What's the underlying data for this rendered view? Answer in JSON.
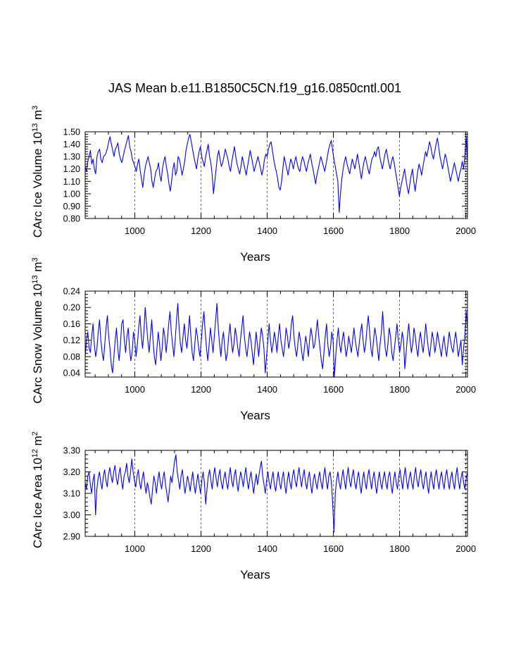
{
  "title": "JAS Mean b.e11.B1850C5CN.f19_g16.0850cntl.001",
  "line_color": "#0000ff",
  "chart_data": [
    {
      "type": "line",
      "title": "JAS Mean b.e11.B1850C5CN.f19_g16.0850cntl.001",
      "xlabel": "Years",
      "ylabel_main": "CArc Ice Volume 10",
      "ylabel_exp": "13",
      "ylabel_unit": " m",
      "ylabel_unit_exp": "3",
      "xlim": [
        850,
        2005
      ],
      "ylim": [
        0.8,
        1.5
      ],
      "yticks": [
        0.8,
        0.9,
        1.0,
        1.1,
        1.2,
        1.3,
        1.4,
        1.5
      ],
      "ytick_labels": [
        "0.80",
        "0.90",
        "1.00",
        "1.10",
        "1.20",
        "1.30",
        "1.40",
        "1.50"
      ],
      "xticks": [
        1000,
        1200,
        1400,
        1600,
        1800,
        2000
      ],
      "xtick_labels": [
        "1000",
        "1200",
        "1400",
        "1600",
        "1800",
        "2000"
      ],
      "gridlines_x": [
        1000,
        1200,
        1400,
        1600,
        1800,
        2000
      ],
      "series": [
        {
          "name": "CArc Ice Volume",
          "x_start": 850,
          "values": [
            1.22,
            1.18,
            1.26,
            1.3,
            1.35,
            1.24,
            1.28,
            1.2,
            1.16,
            1.3,
            1.34,
            1.36,
            1.28,
            1.25,
            1.3,
            1.31,
            1.33,
            1.37,
            1.42,
            1.46,
            1.4,
            1.35,
            1.3,
            1.36,
            1.38,
            1.41,
            1.32,
            1.28,
            1.25,
            1.3,
            1.35,
            1.39,
            1.43,
            1.47,
            1.38,
            1.34,
            1.28,
            1.25,
            1.22,
            1.18,
            1.24,
            1.28,
            1.19,
            1.12,
            1.05,
            1.15,
            1.22,
            1.26,
            1.3,
            1.25,
            1.2,
            1.1,
            1.05,
            1.12,
            1.18,
            1.2,
            1.25,
            1.15,
            1.1,
            1.2,
            1.26,
            1.3,
            1.22,
            1.16,
            1.08,
            1.02,
            1.1,
            1.2,
            1.25,
            1.15,
            1.18,
            1.3,
            1.28,
            1.22,
            1.15,
            1.2,
            1.26,
            1.35,
            1.4,
            1.45,
            1.48,
            1.42,
            1.36,
            1.3,
            1.25,
            1.2,
            1.28,
            1.34,
            1.38,
            1.3,
            1.26,
            1.22,
            1.3,
            1.35,
            1.4,
            1.3,
            1.25,
            1.15,
            1.0,
            1.1,
            1.2,
            1.3,
            1.35,
            1.28,
            1.22,
            1.25,
            1.3,
            1.36,
            1.32,
            1.28,
            1.22,
            1.18,
            1.26,
            1.32,
            1.38,
            1.3,
            1.24,
            1.2,
            1.16,
            1.22,
            1.3,
            1.25,
            1.2,
            1.15,
            1.22,
            1.28,
            1.35,
            1.3,
            1.24,
            1.18,
            1.22,
            1.26,
            1.3,
            1.25,
            1.2,
            1.15,
            1.2,
            1.28,
            1.32,
            1.3,
            1.36,
            1.4,
            1.42,
            1.35,
            1.28,
            1.22,
            1.18,
            1.12,
            1.05,
            1.03,
            1.1,
            1.2,
            1.3,
            1.25,
            1.2,
            1.15,
            1.22,
            1.28,
            1.25,
            1.2,
            1.26,
            1.3,
            1.24,
            1.2,
            1.18,
            1.25,
            1.3,
            1.27,
            1.22,
            1.18,
            1.24,
            1.28,
            1.32,
            1.25,
            1.2,
            1.14,
            1.08,
            1.15,
            1.2,
            1.25,
            1.3,
            1.26,
            1.22,
            1.18,
            1.24,
            1.3,
            1.36,
            1.4,
            1.43,
            1.35,
            1.28,
            1.22,
            1.16,
            1.1,
            0.85,
            1.0,
            1.12,
            1.2,
            1.26,
            1.3,
            1.24,
            1.2,
            1.16,
            1.22,
            1.28,
            1.24,
            1.2,
            1.26,
            1.32,
            1.25,
            1.18,
            1.12,
            1.2,
            1.26,
            1.3,
            1.25,
            1.2,
            1.16,
            1.22,
            1.28,
            1.3,
            1.34,
            1.3,
            1.36,
            1.38,
            1.3,
            1.25,
            1.2,
            1.26,
            1.32,
            1.36,
            1.3,
            1.24,
            1.2,
            1.26,
            1.3,
            1.25,
            1.18,
            1.12,
            1.05,
            0.98,
            1.05,
            1.1,
            1.15,
            1.2,
            1.12,
            1.05,
            1.0,
            1.08,
            1.15,
            1.2,
            1.1,
            1.02,
            1.1,
            1.18,
            1.24,
            1.2,
            1.15,
            1.22,
            1.28,
            1.34,
            1.3,
            1.36,
            1.42,
            1.38,
            1.32,
            1.28,
            1.34,
            1.4,
            1.45,
            1.38,
            1.3,
            1.25,
            1.2,
            1.26,
            1.32,
            1.28,
            1.22,
            1.16,
            1.1,
            1.15,
            1.2,
            1.25,
            1.2,
            1.15,
            1.1,
            1.16,
            1.2,
            1.26,
            1.2,
            1.3,
            1.46,
            1.25
          ]
        }
      ]
    },
    {
      "type": "line",
      "xlabel": "Years",
      "ylabel_main": "CArc Snow Volume 10",
      "ylabel_exp": "13",
      "ylabel_unit": " m",
      "ylabel_unit_exp": "3",
      "xlim": [
        850,
        2005
      ],
      "ylim": [
        0.03,
        0.24
      ],
      "yticks": [
        0.04,
        0.08,
        0.12,
        0.16,
        0.2,
        0.24
      ],
      "ytick_labels": [
        "0.04",
        "0.08",
        "0.12",
        "0.16",
        "0.20",
        "0.24"
      ],
      "xticks": [
        1000,
        1200,
        1400,
        1600,
        1800,
        2000
      ],
      "xtick_labels": [
        "1000",
        "1200",
        "1400",
        "1600",
        "1800",
        "2000"
      ],
      "gridlines_x": [
        1000,
        1200,
        1400,
        1600,
        1800,
        2000
      ],
      "series": [
        {
          "name": "CArc Snow Volume",
          "x_start": 850,
          "values": [
            0.08,
            0.12,
            0.14,
            0.1,
            0.09,
            0.13,
            0.16,
            0.11,
            0.08,
            0.1,
            0.14,
            0.17,
            0.12,
            0.09,
            0.07,
            0.11,
            0.15,
            0.18,
            0.13,
            0.1,
            0.06,
            0.04,
            0.08,
            0.12,
            0.15,
            0.1,
            0.07,
            0.11,
            0.16,
            0.17,
            0.12,
            0.09,
            0.13,
            0.15,
            0.1,
            0.07,
            0.09,
            0.14,
            0.12,
            0.08,
            0.11,
            0.15,
            0.18,
            0.13,
            0.1,
            0.14,
            0.2,
            0.16,
            0.12,
            0.09,
            0.13,
            0.17,
            0.12,
            0.08,
            0.06,
            0.1,
            0.14,
            0.11,
            0.07,
            0.1,
            0.15,
            0.13,
            0.09,
            0.12,
            0.16,
            0.19,
            0.14,
            0.11,
            0.08,
            0.12,
            0.17,
            0.21,
            0.15,
            0.11,
            0.09,
            0.13,
            0.16,
            0.12,
            0.1,
            0.14,
            0.18,
            0.13,
            0.09,
            0.07,
            0.11,
            0.15,
            0.13,
            0.1,
            0.08,
            0.12,
            0.16,
            0.19,
            0.14,
            0.1,
            0.07,
            0.11,
            0.15,
            0.12,
            0.09,
            0.13,
            0.17,
            0.21,
            0.15,
            0.11,
            0.08,
            0.12,
            0.14,
            0.1,
            0.07,
            0.09,
            0.13,
            0.16,
            0.12,
            0.09,
            0.11,
            0.15,
            0.13,
            0.1,
            0.08,
            0.12,
            0.15,
            0.18,
            0.13,
            0.1,
            0.08,
            0.11,
            0.14,
            0.12,
            0.09,
            0.06,
            0.1,
            0.14,
            0.11,
            0.08,
            0.12,
            0.15,
            0.13,
            0.1,
            0.04,
            0.08,
            0.12,
            0.16,
            0.12,
            0.09,
            0.11,
            0.14,
            0.12,
            0.09,
            0.13,
            0.16,
            0.12,
            0.1,
            0.08,
            0.11,
            0.15,
            0.13,
            0.1,
            0.12,
            0.16,
            0.18,
            0.13,
            0.1,
            0.08,
            0.11,
            0.14,
            0.12,
            0.09,
            0.07,
            0.1,
            0.13,
            0.11,
            0.08,
            0.12,
            0.15,
            0.13,
            0.1,
            0.11,
            0.14,
            0.17,
            0.13,
            0.1,
            0.07,
            0.05,
            0.09,
            0.13,
            0.16,
            0.11,
            0.08,
            0.1,
            0.14,
            0.12,
            0.03,
            0.08,
            0.12,
            0.15,
            0.11,
            0.09,
            0.12,
            0.14,
            0.11,
            0.08,
            0.1,
            0.13,
            0.11,
            0.09,
            0.12,
            0.15,
            0.12,
            0.1,
            0.08,
            0.11,
            0.14,
            0.16,
            0.12,
            0.09,
            0.11,
            0.15,
            0.18,
            0.14,
            0.1,
            0.08,
            0.12,
            0.15,
            0.13,
            0.1,
            0.07,
            0.11,
            0.14,
            0.19,
            0.14,
            0.1,
            0.08,
            0.11,
            0.15,
            0.13,
            0.09,
            0.07,
            0.1,
            0.13,
            0.16,
            0.12,
            0.09,
            0.11,
            0.14,
            0.12,
            0.05,
            0.09,
            0.13,
            0.16,
            0.12,
            0.09,
            0.11,
            0.15,
            0.13,
            0.1,
            0.08,
            0.12,
            0.14,
            0.11,
            0.09,
            0.12,
            0.16,
            0.13,
            0.1,
            0.08,
            0.11,
            0.14,
            0.12,
            0.09,
            0.11,
            0.14,
            0.12,
            0.1,
            0.08,
            0.11,
            0.13,
            0.1,
            0.08,
            0.11,
            0.14,
            0.12,
            0.1,
            0.09,
            0.12,
            0.14,
            0.11,
            0.08,
            0.1,
            0.12,
            0.06,
            0.1,
            0.13,
            0.19,
            0.15
          ]
        }
      ]
    },
    {
      "type": "line",
      "xlabel": "Years",
      "ylabel_main": "CArc Ice Area 10",
      "ylabel_exp": "12",
      "ylabel_unit": " m",
      "ylabel_unit_exp": "2",
      "xlim": [
        850,
        2005
      ],
      "ylim": [
        2.9,
        3.3
      ],
      "yticks": [
        2.9,
        3.0,
        3.1,
        3.2,
        3.3
      ],
      "ytick_labels": [
        "2.90",
        "3.00",
        "3.10",
        "3.20",
        "3.30"
      ],
      "xticks": [
        1000,
        1200,
        1400,
        1600,
        1800,
        2000
      ],
      "xtick_labels": [
        "1000",
        "1200",
        "1400",
        "1600",
        "1800",
        "2000"
      ],
      "gridlines_x": [
        1000,
        1200,
        1400,
        1600,
        1800,
        2000
      ],
      "series": [
        {
          "name": "CArc Ice Area",
          "x_start": 850,
          "values": [
            3.15,
            3.12,
            3.18,
            3.2,
            3.14,
            3.1,
            3.16,
            3.19,
            3.0,
            3.12,
            3.17,
            3.2,
            3.15,
            3.12,
            3.18,
            3.21,
            3.16,
            3.13,
            3.19,
            3.22,
            3.18,
            3.15,
            3.2,
            3.23,
            3.17,
            3.14,
            3.19,
            3.22,
            3.16,
            3.12,
            3.18,
            3.2,
            3.24,
            3.18,
            3.15,
            3.2,
            3.26,
            3.2,
            3.16,
            3.13,
            3.18,
            3.21,
            3.15,
            3.12,
            3.17,
            3.2,
            3.14,
            3.1,
            3.15,
            3.12,
            3.08,
            3.05,
            3.12,
            3.18,
            3.15,
            3.1,
            3.16,
            3.2,
            3.15,
            3.12,
            3.17,
            3.2,
            3.14,
            3.1,
            3.06,
            3.12,
            3.18,
            3.15,
            3.2,
            3.25,
            3.28,
            3.2,
            3.16,
            3.12,
            3.18,
            3.21,
            3.15,
            3.1,
            3.14,
            3.18,
            3.15,
            3.11,
            3.16,
            3.2,
            3.14,
            3.1,
            3.15,
            3.19,
            3.14,
            3.1,
            3.16,
            3.2,
            3.15,
            3.05,
            3.12,
            3.18,
            3.21,
            3.16,
            3.12,
            3.18,
            3.22,
            3.17,
            3.13,
            3.18,
            3.21,
            3.15,
            3.12,
            3.17,
            3.2,
            3.15,
            3.12,
            3.18,
            3.22,
            3.16,
            3.13,
            3.18,
            3.21,
            3.15,
            3.11,
            3.16,
            3.2,
            3.17,
            3.13,
            3.18,
            3.22,
            3.16,
            3.12,
            3.17,
            3.2,
            3.15,
            3.1,
            3.15,
            3.19,
            3.14,
            3.18,
            3.22,
            3.25,
            3.18,
            3.14,
            3.1,
            3.16,
            3.2,
            3.15,
            3.12,
            3.17,
            3.2,
            3.14,
            3.11,
            3.16,
            3.2,
            3.15,
            3.12,
            3.17,
            3.2,
            3.14,
            3.1,
            3.16,
            3.2,
            3.15,
            3.12,
            3.18,
            3.21,
            3.16,
            3.13,
            3.18,
            3.22,
            3.17,
            3.13,
            3.18,
            3.21,
            3.15,
            3.12,
            3.17,
            3.2,
            3.14,
            3.1,
            3.16,
            3.19,
            3.15,
            3.12,
            3.17,
            3.2,
            3.15,
            3.12,
            3.18,
            3.22,
            3.16,
            3.12,
            3.18,
            3.2,
            3.15,
            3.05,
            2.92,
            3.1,
            3.16,
            3.2,
            3.15,
            3.12,
            3.17,
            3.21,
            3.16,
            3.12,
            3.18,
            3.22,
            3.16,
            3.13,
            3.18,
            3.21,
            3.15,
            3.12,
            3.17,
            3.2,
            3.14,
            3.1,
            3.16,
            3.2,
            3.15,
            3.12,
            3.18,
            3.21,
            3.16,
            3.12,
            3.17,
            3.2,
            3.14,
            3.1,
            3.16,
            3.2,
            3.15,
            3.12,
            3.17,
            3.2,
            3.15,
            3.12,
            3.18,
            3.2,
            3.14,
            3.1,
            3.16,
            3.2,
            3.15,
            3.12,
            3.18,
            3.21,
            3.16,
            3.12,
            3.18,
            3.22,
            3.16,
            3.12,
            3.17,
            3.2,
            3.15,
            3.12,
            3.18,
            3.22,
            3.16,
            3.13,
            3.18,
            3.21,
            3.15,
            3.12,
            3.17,
            3.2,
            3.14,
            3.1,
            3.16,
            3.2,
            3.15,
            3.12,
            3.18,
            3.21,
            3.16,
            3.12,
            3.17,
            3.2,
            3.15,
            3.12,
            3.18,
            3.21,
            3.16,
            3.12,
            3.17,
            3.2,
            3.15,
            3.12,
            3.18,
            3.22,
            3.16,
            3.12,
            3.17,
            3.2,
            3.15,
            3.12,
            3.17,
            3.2
          ]
        }
      ]
    }
  ]
}
